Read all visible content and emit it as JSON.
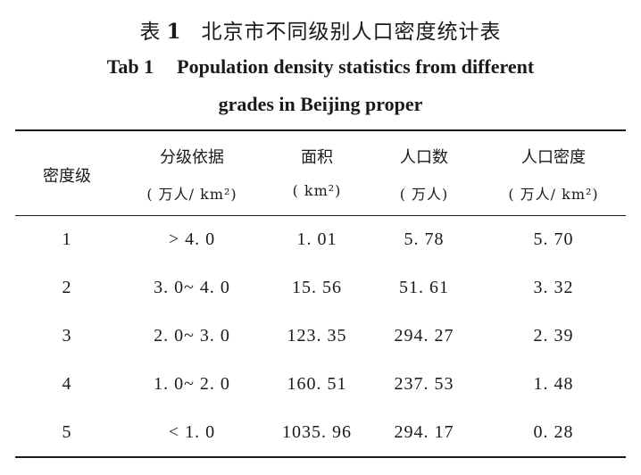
{
  "caption": {
    "cn_prefix": "表",
    "cn_number": "1",
    "cn_title": "北京市不同级别人口密度统计表",
    "en_prefix": "Tab 1",
    "en_line1": "Population density statistics from different",
    "en_line2": "grades in Beijing proper"
  },
  "table": {
    "headers": [
      {
        "name": "密度级",
        "unit": ""
      },
      {
        "name": "分级依据",
        "unit": "( 万人/ km²)"
      },
      {
        "name": "面积",
        "unit": "( km²)"
      },
      {
        "name": "人口数",
        "unit": "( 万人)"
      },
      {
        "name": "人口密度",
        "unit": "( 万人/ km²)"
      }
    ],
    "rows": [
      [
        "1",
        "> 4. 0",
        "1. 01",
        "5. 78",
        "5. 70"
      ],
      [
        "2",
        "3. 0~ 4. 0",
        "15. 56",
        "51. 61",
        "3. 32"
      ],
      [
        "3",
        "2. 0~ 3. 0",
        "123. 35",
        "294. 27",
        "2. 39"
      ],
      [
        "4",
        "1. 0~ 2. 0",
        "160. 51",
        "237. 53",
        "1. 48"
      ],
      [
        "5",
        "< 1. 0",
        "1035. 96",
        "294. 17",
        "0. 28"
      ]
    ]
  }
}
